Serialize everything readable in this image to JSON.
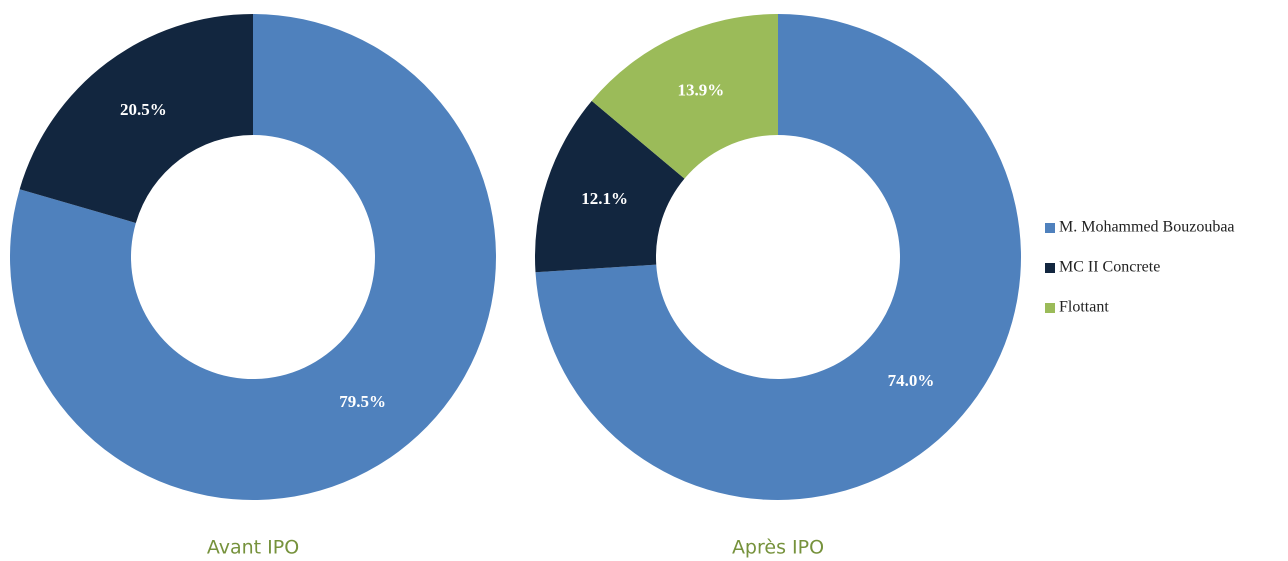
{
  "chart_data": [
    {
      "type": "donut",
      "title": "Avant IPO",
      "categories": [
        "M. Mohammed Bouzoubaa",
        "MC II Concrete"
      ],
      "values": [
        79.5,
        20.5
      ],
      "value_labels": [
        "79.5%",
        "20.5%"
      ],
      "colors": [
        "#4f81bd",
        "#12263f"
      ]
    },
    {
      "type": "donut",
      "title": "Après IPO",
      "categories": [
        "M. Mohammed Bouzoubaa",
        "MC II Concrete",
        "Flottant"
      ],
      "values": [
        74.0,
        12.1,
        13.9
      ],
      "value_labels": [
        "74.0%",
        "12.1%",
        "13.9%"
      ],
      "colors": [
        "#4f81bd",
        "#12263f",
        "#9bbb59"
      ],
      "legend": "right"
    }
  ]
}
